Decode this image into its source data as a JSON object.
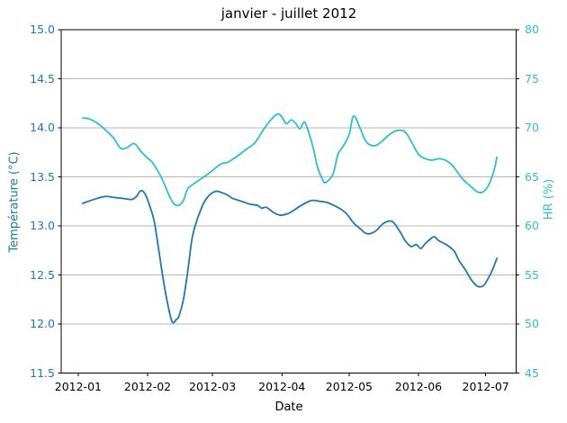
{
  "chart_data": {
    "type": "line",
    "title": "janvier - juillet 2012",
    "xlabel": "Date",
    "ylabel_left": "Température (°C)",
    "ylabel_right": "HR (%)",
    "grid": {
      "horizontal": true,
      "vertical": false,
      "color": "#b6b6b6"
    },
    "background": "#ffffff",
    "spine_color": "#000000",
    "axes": {
      "x": {
        "unit": "days since 2012-01-01",
        "lim": [
          -7.6,
          195.6
        ],
        "ticks": [
          {
            "day": 0,
            "label": "2012-01"
          },
          {
            "day": 31,
            "label": "2012-02"
          },
          {
            "day": 60,
            "label": "2012-03"
          },
          {
            "day": 91,
            "label": "2012-04"
          },
          {
            "day": 121,
            "label": "2012-05"
          },
          {
            "day": 152,
            "label": "2012-06"
          },
          {
            "day": 182,
            "label": "2012-07"
          }
        ]
      },
      "y_left": {
        "lim": [
          11.5,
          15.0
        ],
        "color": "#1f77b4",
        "ticks": [
          {
            "value": 15.0,
            "label": "15.0"
          },
          {
            "value": 14.5,
            "label": "14.5"
          },
          {
            "value": 14.0,
            "label": "14.0"
          },
          {
            "value": 13.5,
            "label": "13.5"
          },
          {
            "value": 13.0,
            "label": "13.0"
          },
          {
            "value": 12.5,
            "label": "12.5"
          },
          {
            "value": 12.0,
            "label": "12.0"
          },
          {
            "value": 11.5,
            "label": "11.5"
          }
        ]
      },
      "y_right": {
        "lim": [
          45,
          80
        ],
        "color": "#2dbed2",
        "ticks": [
          {
            "value": 80,
            "label": "80"
          },
          {
            "value": 75,
            "label": "75"
          },
          {
            "value": 70,
            "label": "70"
          },
          {
            "value": 65,
            "label": "65"
          },
          {
            "value": 60,
            "label": "60"
          },
          {
            "value": 55,
            "label": "55"
          },
          {
            "value": 50,
            "label": "50"
          },
          {
            "value": 45,
            "label": "45"
          }
        ]
      }
    },
    "series": [
      {
        "name": "Température",
        "axis": "left",
        "color": "#1f77b4",
        "points": [
          [
            2,
            13.23
          ],
          [
            7,
            13.27
          ],
          [
            12,
            13.3
          ],
          [
            16,
            13.29
          ],
          [
            20,
            13.28
          ],
          [
            24,
            13.27
          ],
          [
            26,
            13.3
          ],
          [
            28,
            13.36
          ],
          [
            30,
            13.32
          ],
          [
            32,
            13.2
          ],
          [
            34,
            13.04
          ],
          [
            36,
            12.75
          ],
          [
            38,
            12.45
          ],
          [
            40,
            12.2
          ],
          [
            42,
            12.02
          ],
          [
            44,
            12.05
          ],
          [
            45,
            12.08
          ],
          [
            47,
            12.25
          ],
          [
            49,
            12.55
          ],
          [
            51,
            12.89
          ],
          [
            54,
            13.12
          ],
          [
            57,
            13.27
          ],
          [
            61,
            13.35
          ],
          [
            64,
            13.34
          ],
          [
            67,
            13.31
          ],
          [
            69,
            13.28
          ],
          [
            73,
            13.25
          ],
          [
            77,
            13.22
          ],
          [
            80,
            13.21
          ],
          [
            82,
            13.18
          ],
          [
            84,
            13.19
          ],
          [
            87,
            13.14
          ],
          [
            90,
            13.11
          ],
          [
            93,
            13.12
          ],
          [
            95,
            13.14
          ],
          [
            99,
            13.2
          ],
          [
            103,
            13.25
          ],
          [
            105,
            13.26
          ],
          [
            108,
            13.25
          ],
          [
            111,
            13.24
          ],
          [
            115,
            13.2
          ],
          [
            118,
            13.16
          ],
          [
            120,
            13.12
          ],
          [
            123,
            13.03
          ],
          [
            126,
            12.97
          ],
          [
            128,
            12.93
          ],
          [
            130,
            12.92
          ],
          [
            133,
            12.95
          ],
          [
            136,
            13.02
          ],
          [
            139,
            13.05
          ],
          [
            141,
            13.03
          ],
          [
            144,
            12.93
          ],
          [
            146,
            12.85
          ],
          [
            148,
            12.8
          ],
          [
            149,
            12.79
          ],
          [
            151,
            12.81
          ],
          [
            153,
            12.77
          ],
          [
            155,
            12.82
          ],
          [
            157,
            12.86
          ],
          [
            159,
            12.89
          ],
          [
            161,
            12.85
          ],
          [
            165,
            12.8
          ],
          [
            168,
            12.74
          ],
          [
            170,
            12.65
          ],
          [
            173,
            12.55
          ],
          [
            175,
            12.47
          ],
          [
            177,
            12.41
          ],
          [
            179,
            12.38
          ],
          [
            181,
            12.39
          ],
          [
            183,
            12.46
          ],
          [
            185,
            12.55
          ],
          [
            187,
            12.67
          ]
        ]
      },
      {
        "name": "HR",
        "axis": "right",
        "color": "#2dbed2",
        "points": [
          [
            2,
            71.0
          ],
          [
            5,
            70.9
          ],
          [
            9,
            70.4
          ],
          [
            13,
            69.6
          ],
          [
            16,
            68.9
          ],
          [
            19,
            67.9
          ],
          [
            22,
            68.0
          ],
          [
            25,
            68.4
          ],
          [
            28,
            67.6
          ],
          [
            31,
            66.9
          ],
          [
            33,
            66.5
          ],
          [
            37,
            65.0
          ],
          [
            41,
            62.9
          ],
          [
            43,
            62.2
          ],
          [
            45,
            62.1
          ],
          [
            47,
            62.6
          ],
          [
            49,
            63.8
          ],
          [
            53,
            64.5
          ],
          [
            58,
            65.3
          ],
          [
            63,
            66.2
          ],
          [
            65,
            66.4
          ],
          [
            67,
            66.5
          ],
          [
            69,
            66.8
          ],
          [
            71,
            67.1
          ],
          [
            75,
            67.8
          ],
          [
            79,
            68.5
          ],
          [
            83,
            69.9
          ],
          [
            86,
            70.8
          ],
          [
            89,
            71.4
          ],
          [
            91,
            71.1
          ],
          [
            93,
            70.4
          ],
          [
            95,
            70.8
          ],
          [
            97,
            70.5
          ],
          [
            99,
            69.9
          ],
          [
            101,
            70.6
          ],
          [
            103,
            69.5
          ],
          [
            105,
            67.9
          ],
          [
            107,
            65.9
          ],
          [
            109,
            64.8
          ],
          [
            110,
            64.4
          ],
          [
            112,
            64.7
          ],
          [
            114,
            65.4
          ],
          [
            116,
            67.3
          ],
          [
            118,
            68.0
          ],
          [
            121,
            69.3
          ],
          [
            123,
            71.2
          ],
          [
            126,
            69.9
          ],
          [
            128,
            68.8
          ],
          [
            130,
            68.3
          ],
          [
            133,
            68.2
          ],
          [
            136,
            68.7
          ],
          [
            139,
            69.3
          ],
          [
            142,
            69.7
          ],
          [
            145,
            69.7
          ],
          [
            147,
            69.3
          ],
          [
            149,
            68.5
          ],
          [
            152,
            67.3
          ],
          [
            155,
            66.85
          ],
          [
            158,
            66.7
          ],
          [
            161,
            66.85
          ],
          [
            164,
            66.7
          ],
          [
            167,
            66.2
          ],
          [
            169,
            65.6
          ],
          [
            172,
            64.7
          ],
          [
            175,
            64.1
          ],
          [
            178,
            63.5
          ],
          [
            180,
            63.4
          ],
          [
            182,
            63.7
          ],
          [
            184,
            64.5
          ],
          [
            186,
            65.9
          ],
          [
            187,
            67.0
          ]
        ]
      }
    ]
  }
}
